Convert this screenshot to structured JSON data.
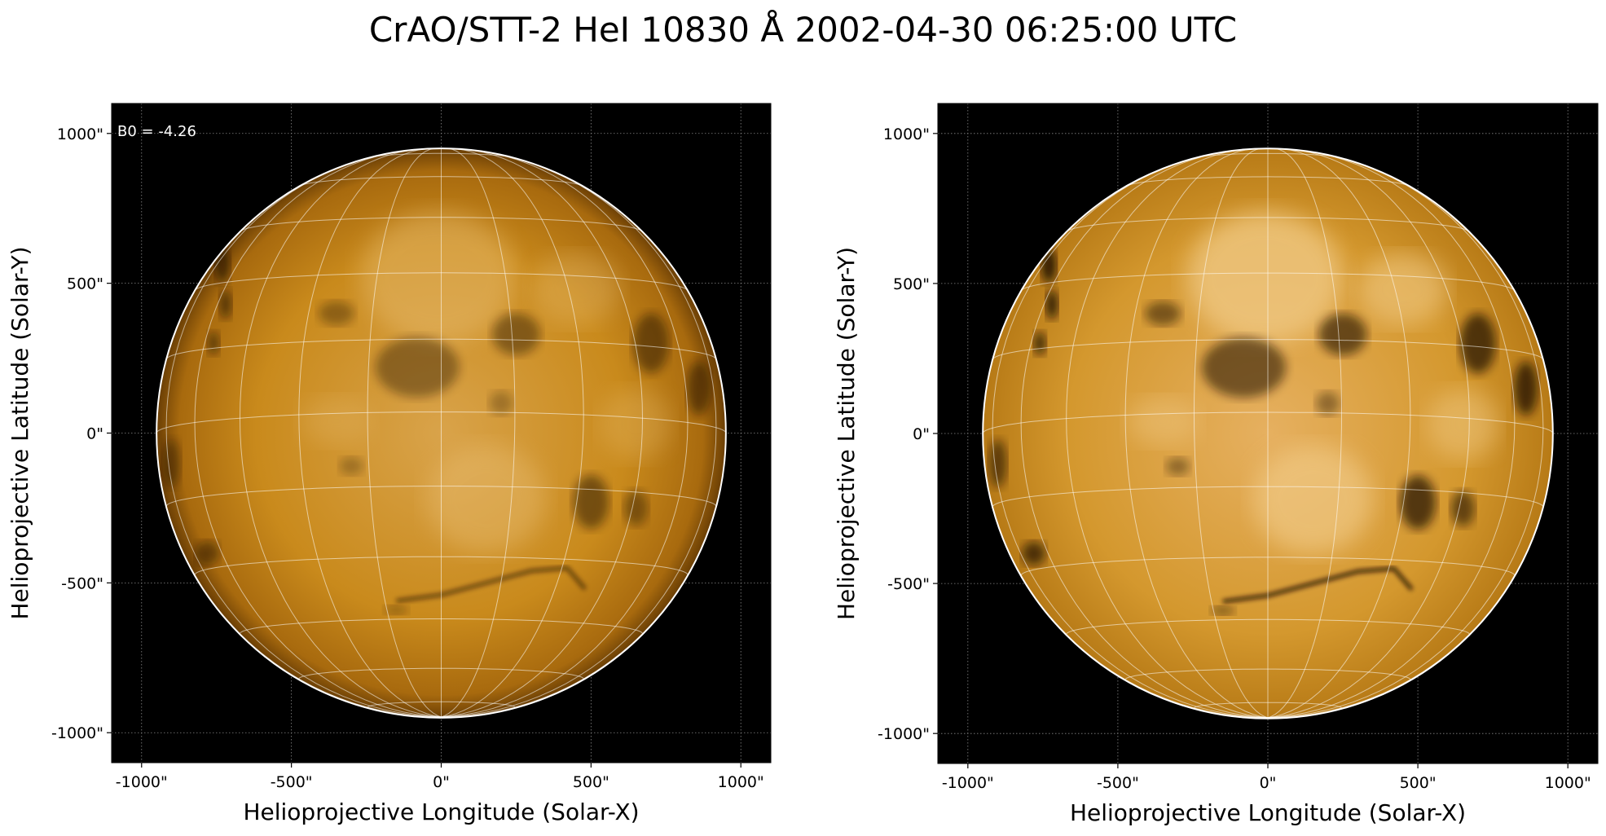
{
  "figure": {
    "title": "CrAO/STT-2 HeI 10830 Å 2002-04-30 06:25:00 UTC"
  },
  "axes_common": {
    "xlabel": "Helioprojective Longitude (Solar-X)",
    "ylabel": "Helioprojective Latitude (Solar-Y)",
    "tick_labels": [
      "-1000\"",
      "-500\"",
      "0\"",
      "500\"",
      "1000\""
    ],
    "tick_values": [
      -1000,
      -500,
      0,
      500,
      1000
    ],
    "range": [
      -1100,
      1100
    ]
  },
  "panels": [
    {
      "id": "left",
      "annotation": "B0 = -4.26",
      "style": "normal-contrast"
    },
    {
      "id": "right",
      "annotation": "",
      "style": "enhanced-contrast"
    }
  ],
  "sun": {
    "radius_arcsec": 950,
    "colormap": "sdoaia171-like orange",
    "colors": {
      "background": "#000000",
      "disk_base": "#c98a1c",
      "disk_bright": "#f2cc8a",
      "disk_dark": "#1a0d00",
      "limb": "#ffffff",
      "grid": "#ffffff"
    }
  }
}
